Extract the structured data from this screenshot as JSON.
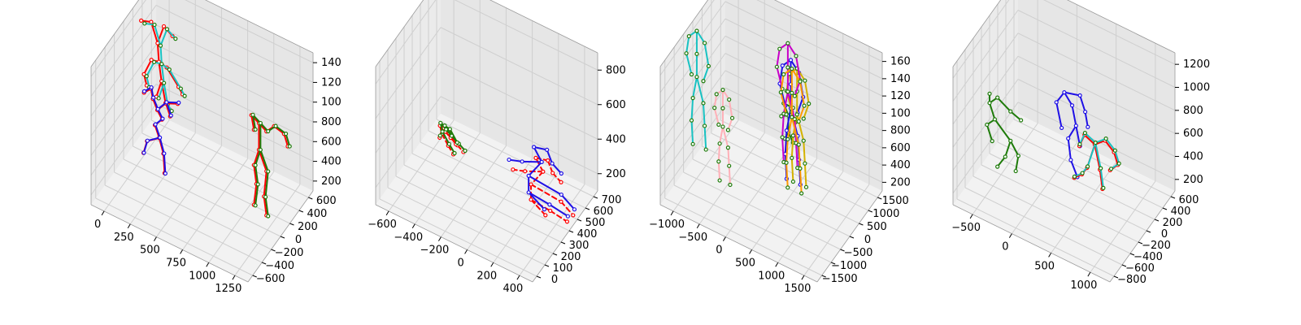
{
  "chart_data": [
    {
      "type": "scatter3d",
      "title": "",
      "xlim": [
        -150,
        1400
      ],
      "ylim": [
        -700,
        700
      ],
      "zlim": [
        0,
        1600
      ],
      "x_ticks": [
        "0",
        "250",
        "500",
        "750",
        "1000",
        "1250"
      ],
      "y_ticks": [
        "600",
        "400",
        "200",
        "0",
        "−200",
        "−400",
        "−600"
      ],
      "z_ticks": [
        "140",
        "120",
        "100",
        "800",
        "600",
        "400",
        "200"
      ],
      "series": [
        {
          "color": "#ff0000",
          "style": "solid",
          "skeleton": "A",
          "offset": [
            280,
            50,
            440
          ],
          "scale": 0.98,
          "lean": -0.05
        },
        {
          "color": "#19c2c2",
          "style": "solid",
          "skeleton": "A",
          "offset": [
            300,
            60,
            450
          ],
          "scale": 0.97,
          "lean": -0.04
        },
        {
          "color": "#ff0000",
          "style": "solid",
          "skeleton": "B",
          "offset": [
            120,
            -40,
            -10
          ],
          "scale": 0.98,
          "lean": 0.05
        },
        {
          "color": "#1f10e6",
          "style": "solid",
          "skeleton": "B",
          "offset": [
            130,
            -30,
            0
          ],
          "scale": 1.0,
          "lean": 0.05
        },
        {
          "color": "#ff0000",
          "style": "solid",
          "skeleton": "C",
          "offset": [
            1150,
            -80,
            -20
          ],
          "scale": 0.96,
          "lean": 0.0
        },
        {
          "color": "#1e7b0a",
          "style": "solid",
          "skeleton": "C",
          "offset": [
            1170,
            -70,
            -10
          ],
          "scale": 0.97,
          "lean": 0.0
        }
      ]
    },
    {
      "type": "scatter3d",
      "title": "",
      "xlim": [
        -750,
        450
      ],
      "ylim": [
        -50,
        750
      ],
      "zlim": [
        0,
        900
      ],
      "x_ticks": [
        "−600",
        "−400",
        "−200",
        "0",
        "200",
        "400"
      ],
      "y_ticks": [
        "700",
        "600",
        "500",
        "400",
        "300",
        "200",
        "100",
        "0"
      ],
      "z_ticks": [
        "800",
        "600",
        "400",
        "200"
      ],
      "series": [
        {
          "color": "#ff0000",
          "style": "dashed",
          "skeleton": "D",
          "offset": [
            -600,
            200,
            0
          ],
          "scale": 0.95,
          "lean": 0.0
        },
        {
          "color": "#1e7b0a",
          "style": "solid",
          "skeleton": "D",
          "offset": [
            -590,
            210,
            20
          ],
          "scale": 1.0,
          "lean": 0.0
        },
        {
          "color": "#ff0000",
          "style": "dashed",
          "skeleton": "E",
          "offset": [
            250,
            300,
            -30
          ],
          "scale": 0.92,
          "lean": 0.0
        },
        {
          "color": "#1f10e6",
          "style": "solid",
          "skeleton": "E",
          "offset": [
            240,
            300,
            0
          ],
          "scale": 1.0,
          "lean": 0.0
        }
      ]
    },
    {
      "type": "scatter3d",
      "title": "",
      "xlim": [
        -1250,
        1750
      ],
      "ylim": [
        -1700,
        1700
      ],
      "zlim": [
        0,
        1700
      ],
      "x_ticks": [
        "−1000",
        "−500",
        "0",
        "500",
        "1000",
        "1500"
      ],
      "y_ticks": [
        "1500",
        "1000",
        "500",
        "0",
        "−500",
        "−1000",
        "−1500"
      ],
      "z_ticks": [
        "160",
        "140",
        "120",
        "100",
        "800",
        "600",
        "400",
        "200"
      ],
      "series": [
        {
          "color": "#19c2c2",
          "style": "solid",
          "skeleton": "F",
          "offset": [
            -1100,
            200,
            50
          ],
          "scale": 1.0,
          "lean": 0.0
        },
        {
          "color": "#ffb0b8",
          "style": "solid",
          "skeleton": "F",
          "offset": [
            -200,
            1300,
            300
          ],
          "scale": 0.8,
          "lean": 0.0
        },
        {
          "color": "#1e7b0a",
          "style": "solid",
          "skeleton": "G",
          "offset": [
            650,
            200,
            900
          ],
          "scale": 0.9,
          "lean": 0.0
        },
        {
          "color": "#1f10e6",
          "style": "solid",
          "skeleton": "F",
          "offset": [
            550,
            -200,
            0
          ],
          "scale": 1.05,
          "lean": 0.0
        },
        {
          "color": "#d4b200",
          "style": "solid",
          "skeleton": "F",
          "offset": [
            780,
            100,
            150
          ],
          "scale": 1.0,
          "lean": 0.0
        },
        {
          "color": "#c800c8",
          "style": "solid",
          "skeleton": "F",
          "offset": [
            750,
            500,
            500
          ],
          "scale": 1.05,
          "lean": 0.0
        },
        {
          "color": "#ff9a00",
          "style": "solid",
          "skeleton": "F",
          "offset": [
            900,
            700,
            300
          ],
          "scale": 1.05,
          "lean": 0.0
        }
      ]
    },
    {
      "type": "scatter3d",
      "title": "",
      "xlim": [
        -1000,
        1250
      ],
      "ylim": [
        -900,
        700
      ],
      "zlim": [
        0,
        1300
      ],
      "x_ticks": [
        "−500",
        "0",
        "500",
        "1000"
      ],
      "y_ticks": [
        "600",
        "400",
        "200",
        "0",
        "−200",
        "−400",
        "−600",
        "−800"
      ],
      "z_ticks": [
        "1200",
        "1000",
        "800",
        "600",
        "400",
        "200"
      ],
      "series": [
        {
          "color": "#1e7b0a",
          "style": "solid",
          "skeleton": "H",
          "offset": [
            -750,
            100,
            0
          ],
          "scale": 1.0,
          "lean": 0.0
        },
        {
          "color": "#1f10e6",
          "style": "solid",
          "skeleton": "I",
          "offset": [
            300,
            0,
            200
          ],
          "scale": 1.0,
          "lean": 0.0
        },
        {
          "color": "#ff0000",
          "style": "solid",
          "skeleton": "J",
          "offset": [
            450,
            -300,
            -10
          ],
          "scale": 0.98,
          "lean": 0.0
        },
        {
          "color": "#19c2c2",
          "style": "solid",
          "skeleton": "J",
          "offset": [
            460,
            -300,
            0
          ],
          "scale": 1.0,
          "lean": 0.0
        }
      ]
    }
  ]
}
